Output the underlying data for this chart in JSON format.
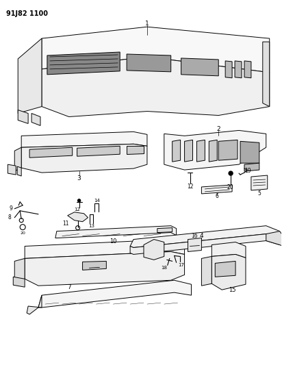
{
  "title_code": "91J82 1100",
  "bg": "#ffffff",
  "lc": "#000000",
  "fig_width": 4.12,
  "fig_height": 5.33,
  "dpi": 100
}
